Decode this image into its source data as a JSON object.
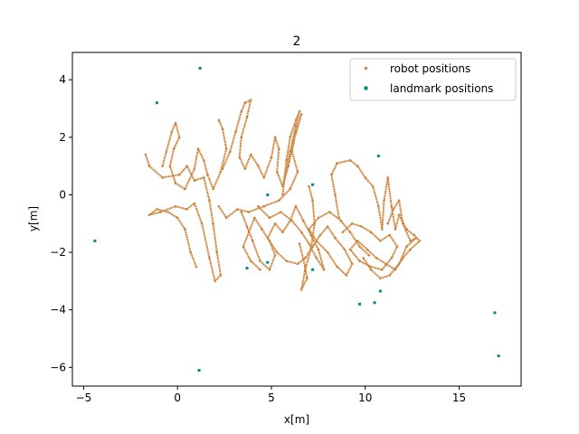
{
  "chart_data": {
    "type": "scatter",
    "title": "2",
    "xlabel": "x[m]",
    "ylabel": "y[m]",
    "xlim": [
      -5.6,
      18.3
    ],
    "ylim": [
      -6.65,
      4.95
    ],
    "x_ticks": [
      -5,
      0,
      5,
      10,
      15
    ],
    "y_ticks": [
      -6,
      -4,
      -2,
      0,
      2,
      4
    ],
    "grid": false,
    "legend_position": "top-right",
    "series": [
      {
        "name": "robot positions",
        "color": "#cd853f",
        "marker": "dot",
        "paths": [
          [
            [
              -1.7,
              1.4
            ],
            [
              -1.5,
              1.0
            ],
            [
              -0.8,
              0.6
            ],
            [
              0.1,
              0.7
            ],
            [
              0.5,
              1.0
            ],
            [
              0.9,
              0.5
            ],
            [
              1.4,
              0.6
            ],
            [
              1.7,
              -0.2
            ],
            [
              1.9,
              -1.0
            ],
            [
              2.1,
              -2.0
            ],
            [
              2.3,
              -2.8
            ],
            [
              2.0,
              -3.0
            ],
            [
              1.7,
              -2.2
            ],
            [
              1.3,
              -1.0
            ],
            [
              0.9,
              -0.3
            ],
            [
              0.5,
              -0.5
            ],
            [
              -0.1,
              -0.4
            ],
            [
              -0.9,
              -0.6
            ],
            [
              -1.5,
              -0.7
            ],
            [
              -1.1,
              -0.5
            ],
            [
              -0.5,
              -0.6
            ],
            [
              0.0,
              -0.8
            ],
            [
              0.4,
              -1.2
            ],
            [
              0.7,
              -2.0
            ],
            [
              1.0,
              -2.5
            ]
          ],
          [
            [
              -0.8,
              1.0
            ],
            [
              -0.6,
              1.5
            ],
            [
              -0.3,
              2.2
            ],
            [
              -0.1,
              2.5
            ],
            [
              0.1,
              2.0
            ],
            [
              -0.2,
              1.6
            ],
            [
              -0.4,
              1.0
            ],
            [
              -0.1,
              0.4
            ],
            [
              0.4,
              0.2
            ],
            [
              0.9,
              0.9
            ],
            [
              1.1,
              1.6
            ],
            [
              1.4,
              1.2
            ],
            [
              1.6,
              0.7
            ],
            [
              1.9,
              0.2
            ],
            [
              2.3,
              0.8
            ],
            [
              2.6,
              1.6
            ],
            [
              2.4,
              2.3
            ],
            [
              2.2,
              2.6
            ]
          ],
          [
            [
              2.4,
              0.9
            ],
            [
              2.8,
              1.5
            ],
            [
              3.1,
              2.2
            ],
            [
              3.4,
              2.9
            ],
            [
              3.6,
              3.2
            ],
            [
              3.9,
              3.3
            ],
            [
              3.7,
              2.7
            ],
            [
              3.4,
              2.0
            ],
            [
              3.3,
              1.3
            ],
            [
              3.6,
              0.9
            ],
            [
              3.9,
              1.4
            ],
            [
              4.3,
              1.0
            ],
            [
              4.6,
              0.6
            ],
            [
              5.0,
              1.3
            ],
            [
              5.2,
              2.0
            ],
            [
              5.4,
              1.6
            ],
            [
              5.3,
              0.8
            ],
            [
              5.6,
              0.3
            ],
            [
              5.9,
              1.0
            ],
            [
              6.2,
              1.9
            ],
            [
              6.6,
              2.8
            ],
            [
              6.3,
              2.2
            ],
            [
              6.1,
              1.5
            ],
            [
              6.4,
              0.8
            ],
            [
              6.0,
              0.2
            ],
            [
              5.4,
              -0.2
            ],
            [
              4.6,
              -0.4
            ],
            [
              3.8,
              -0.6
            ],
            [
              3.2,
              -0.5
            ],
            [
              2.6,
              -0.8
            ],
            [
              2.2,
              -0.4
            ]
          ],
          [
            [
              3.4,
              -0.6
            ],
            [
              3.7,
              -1.1
            ],
            [
              4.0,
              -1.6
            ],
            [
              4.4,
              -2.3
            ],
            [
              4.9,
              -2.6
            ],
            [
              5.2,
              -2.1
            ],
            [
              4.9,
              -1.6
            ],
            [
              4.5,
              -1.2
            ],
            [
              4.1,
              -0.8
            ],
            [
              3.8,
              -1.3
            ],
            [
              3.5,
              -1.8
            ],
            [
              3.9,
              -2.3
            ],
            [
              4.4,
              -2.6
            ]
          ],
          [
            [
              4.3,
              -0.4
            ],
            [
              4.9,
              -0.8
            ],
            [
              5.5,
              -0.6
            ],
            [
              6.1,
              -0.9
            ],
            [
              6.6,
              -1.3
            ],
            [
              7.0,
              -1.7
            ],
            [
              7.4,
              -2.2
            ],
            [
              7.8,
              -2.6
            ],
            [
              7.5,
              -1.9
            ],
            [
              7.1,
              -1.4
            ],
            [
              6.7,
              -0.9
            ],
            [
              6.3,
              -0.4
            ],
            [
              6.0,
              -0.9
            ],
            [
              5.6,
              -1.3
            ],
            [
              5.2,
              -1.0
            ],
            [
              4.8,
              -1.5
            ],
            [
              5.3,
              -2.0
            ],
            [
              5.8,
              -2.3
            ],
            [
              6.4,
              -2.4
            ],
            [
              6.8,
              -2.2
            ],
            [
              7.2,
              -1.8
            ],
            [
              7.6,
              -1.4
            ],
            [
              8.0,
              -1.1
            ],
            [
              8.4,
              -1.5
            ],
            [
              8.9,
              -1.9
            ],
            [
              9.3,
              -2.4
            ],
            [
              9.0,
              -2.8
            ],
            [
              8.5,
              -2.5
            ],
            [
              8.0,
              -2.0
            ],
            [
              7.4,
              -1.6
            ],
            [
              7.0,
              -1.2
            ],
            [
              7.5,
              -0.8
            ],
            [
              8.1,
              -0.6
            ],
            [
              8.7,
              -0.9
            ],
            [
              9.2,
              -1.3
            ],
            [
              9.7,
              -1.8
            ],
            [
              10.2,
              -2.1
            ]
          ],
          [
            [
              6.5,
              -1.7
            ],
            [
              6.8,
              -2.5
            ],
            [
              6.9,
              -2.9
            ],
            [
              6.6,
              -3.3
            ],
            [
              6.8,
              -2.6
            ],
            [
              7.1,
              -1.9
            ],
            [
              7.3,
              -1.0
            ],
            [
              7.2,
              -0.2
            ],
            [
              7.0,
              0.3
            ]
          ],
          [
            [
              5.6,
              0.0
            ],
            [
              5.8,
              1.2
            ],
            [
              6.0,
              2.0
            ],
            [
              6.3,
              2.6
            ],
            [
              6.5,
              2.9
            ],
            [
              6.3,
              2.4
            ],
            [
              6.0,
              1.5
            ],
            [
              5.7,
              0.6
            ]
          ],
          [
            [
              8.6,
              -0.8
            ],
            [
              8.4,
              0.0
            ],
            [
              8.2,
              0.7
            ],
            [
              8.5,
              1.1
            ],
            [
              9.2,
              1.2
            ],
            [
              9.6,
              1.0
            ],
            [
              10.0,
              0.6
            ],
            [
              10.4,
              0.3
            ],
            [
              10.7,
              -0.4
            ],
            [
              10.9,
              -1.2
            ],
            [
              11.0,
              -0.2
            ],
            [
              11.2,
              0.6
            ],
            [
              11.4,
              -0.4
            ],
            [
              11.6,
              -1.2
            ],
            [
              11.8,
              -0.7
            ],
            [
              12.2,
              -1.2
            ],
            [
              12.6,
              -1.4
            ],
            [
              12.9,
              -1.6
            ],
            [
              12.4,
              -1.9
            ],
            [
              12.0,
              -2.2
            ],
            [
              11.6,
              -2.6
            ],
            [
              11.1,
              -2.4
            ],
            [
              10.6,
              -2.2
            ],
            [
              10.1,
              -1.9
            ],
            [
              9.6,
              -1.6
            ],
            [
              9.2,
              -1.9
            ],
            [
              9.7,
              -2.3
            ],
            [
              10.3,
              -2.5
            ],
            [
              10.9,
              -2.6
            ],
            [
              11.4,
              -2.2
            ],
            [
              11.7,
              -1.8
            ],
            [
              11.3,
              -1.4
            ],
            [
              10.8,
              -1.6
            ],
            [
              10.3,
              -1.3
            ],
            [
              9.8,
              -1.1
            ],
            [
              9.3,
              -1.0
            ],
            [
              8.8,
              -1.3
            ]
          ],
          [
            [
              11.2,
              -1.0
            ],
            [
              11.5,
              -0.5
            ],
            [
              11.8,
              -0.2
            ],
            [
              12.0,
              -1.0
            ],
            [
              12.4,
              -1.6
            ],
            [
              12.7,
              -1.5
            ],
            [
              12.2,
              -1.8
            ],
            [
              11.8,
              -2.4
            ],
            [
              11.3,
              -2.8
            ],
            [
              10.8,
              -2.9
            ],
            [
              10.3,
              -2.6
            ],
            [
              9.9,
              -2.2
            ]
          ]
        ]
      },
      {
        "name": "landmark positions",
        "color": "#008b8b",
        "marker": "square",
        "points": [
          [
            1.2,
            4.4
          ],
          [
            -1.1,
            3.2
          ],
          [
            10.7,
            1.35
          ],
          [
            4.8,
            0.0
          ],
          [
            7.2,
            0.35
          ],
          [
            -4.4,
            -1.6
          ],
          [
            4.8,
            -2.35
          ],
          [
            3.7,
            -2.55
          ],
          [
            7.2,
            -2.6
          ],
          [
            10.8,
            -3.35
          ],
          [
            9.7,
            -3.8
          ],
          [
            10.5,
            -3.75
          ],
          [
            16.9,
            -4.1
          ],
          [
            17.1,
            -5.6
          ],
          [
            1.15,
            -6.1
          ]
        ]
      }
    ]
  }
}
